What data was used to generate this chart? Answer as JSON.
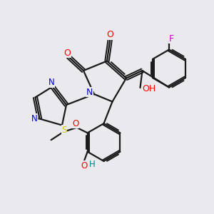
{
  "background_color": "#eaeaee",
  "bond_color": "#1a1a1a",
  "colors": {
    "O": "#ff0000",
    "N": "#0000cc",
    "S": "#cccc00",
    "F": "#cc00cc",
    "C": "#1a1a1a",
    "OH_teal": "#008080"
  }
}
